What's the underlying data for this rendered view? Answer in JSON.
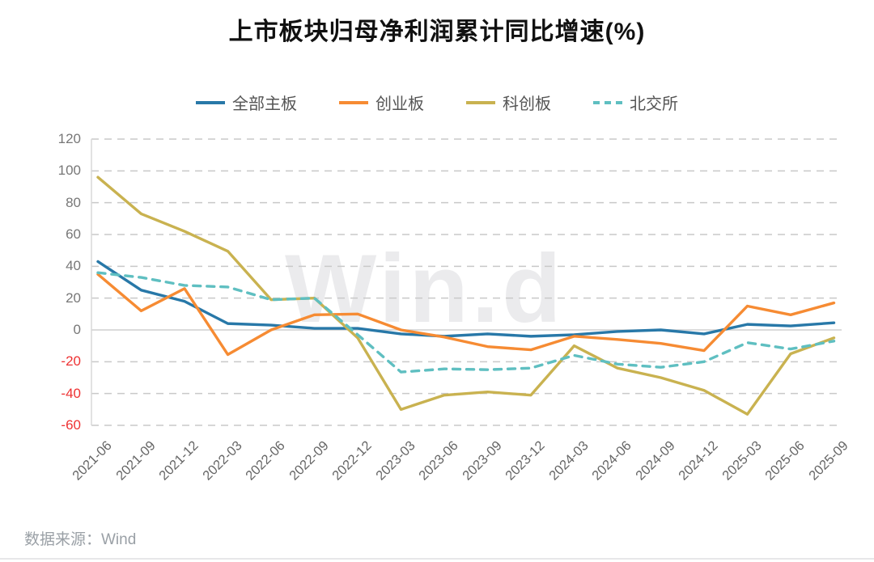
{
  "title": "上市板块归母净利润累计同比增速(%)",
  "watermark": "Win.d",
  "footer": {
    "source_label": "数据来源：Wind"
  },
  "legend": {
    "items": [
      {
        "label": "全部主板",
        "color": "#2878a8",
        "dashed": false
      },
      {
        "label": "创业板",
        "color": "#f68b33",
        "dashed": false
      },
      {
        "label": "科创板",
        "color": "#c9b250",
        "dashed": false
      },
      {
        "label": "北交所",
        "color": "#5fbfc1",
        "dashed": true
      }
    ]
  },
  "chart_data": {
    "type": "line",
    "title": "上市板块归母净利润累计同比增速(%)",
    "xlabel": "",
    "ylabel": "",
    "ylim": [
      -60,
      120
    ],
    "y_ticks": [
      120,
      100,
      80,
      60,
      40,
      20,
      0,
      -20,
      -40,
      -60
    ],
    "grid": "horizontal-dashed, zero-line-solid",
    "legend_position": "top",
    "positive_tick_color": "#777777",
    "negative_tick_color": "#ee3233",
    "categories": [
      "2021-06",
      "2021-09",
      "2021-12",
      "2022-03",
      "2022-06",
      "2022-09",
      "2022-12",
      "2023-03",
      "2023-06",
      "2023-09",
      "2023-12",
      "2024-03",
      "2024-06",
      "2024-09",
      "2024-12",
      "2025-03",
      "2025-06",
      "2025-09"
    ],
    "series": [
      {
        "name": "全部主板",
        "color": "#2878a8",
        "style": "solid",
        "values": [
          43,
          25,
          18,
          4,
          3,
          1,
          1,
          -2.5,
          -4,
          -2.5,
          -4,
          -3,
          -1,
          0,
          -2.5,
          3.5,
          2.5,
          4.5
        ]
      },
      {
        "name": "创业板",
        "color": "#f68b33",
        "style": "solid",
        "values": [
          35,
          12,
          26,
          -15.5,
          0,
          9.5,
          10,
          0,
          -4.5,
          -10.5,
          -12.5,
          -4,
          -6,
          -8.5,
          -13,
          15,
          9.5,
          17
        ]
      },
      {
        "name": "科创板",
        "color": "#c9b250",
        "style": "solid",
        "values": [
          96,
          73,
          62,
          49.5,
          19,
          20,
          -5,
          -50,
          -41,
          -39,
          -41,
          -10,
          -24,
          -30,
          -38,
          -53,
          -15,
          -5
        ]
      },
      {
        "name": "北交所",
        "color": "#5fbfc1",
        "style": "dashed",
        "values": [
          36,
          33,
          28,
          27,
          19,
          20,
          -3,
          -26.5,
          -24.5,
          -25,
          -24,
          -16,
          -21.5,
          -23.5,
          -20,
          -8,
          -12,
          -7
        ]
      }
    ]
  }
}
